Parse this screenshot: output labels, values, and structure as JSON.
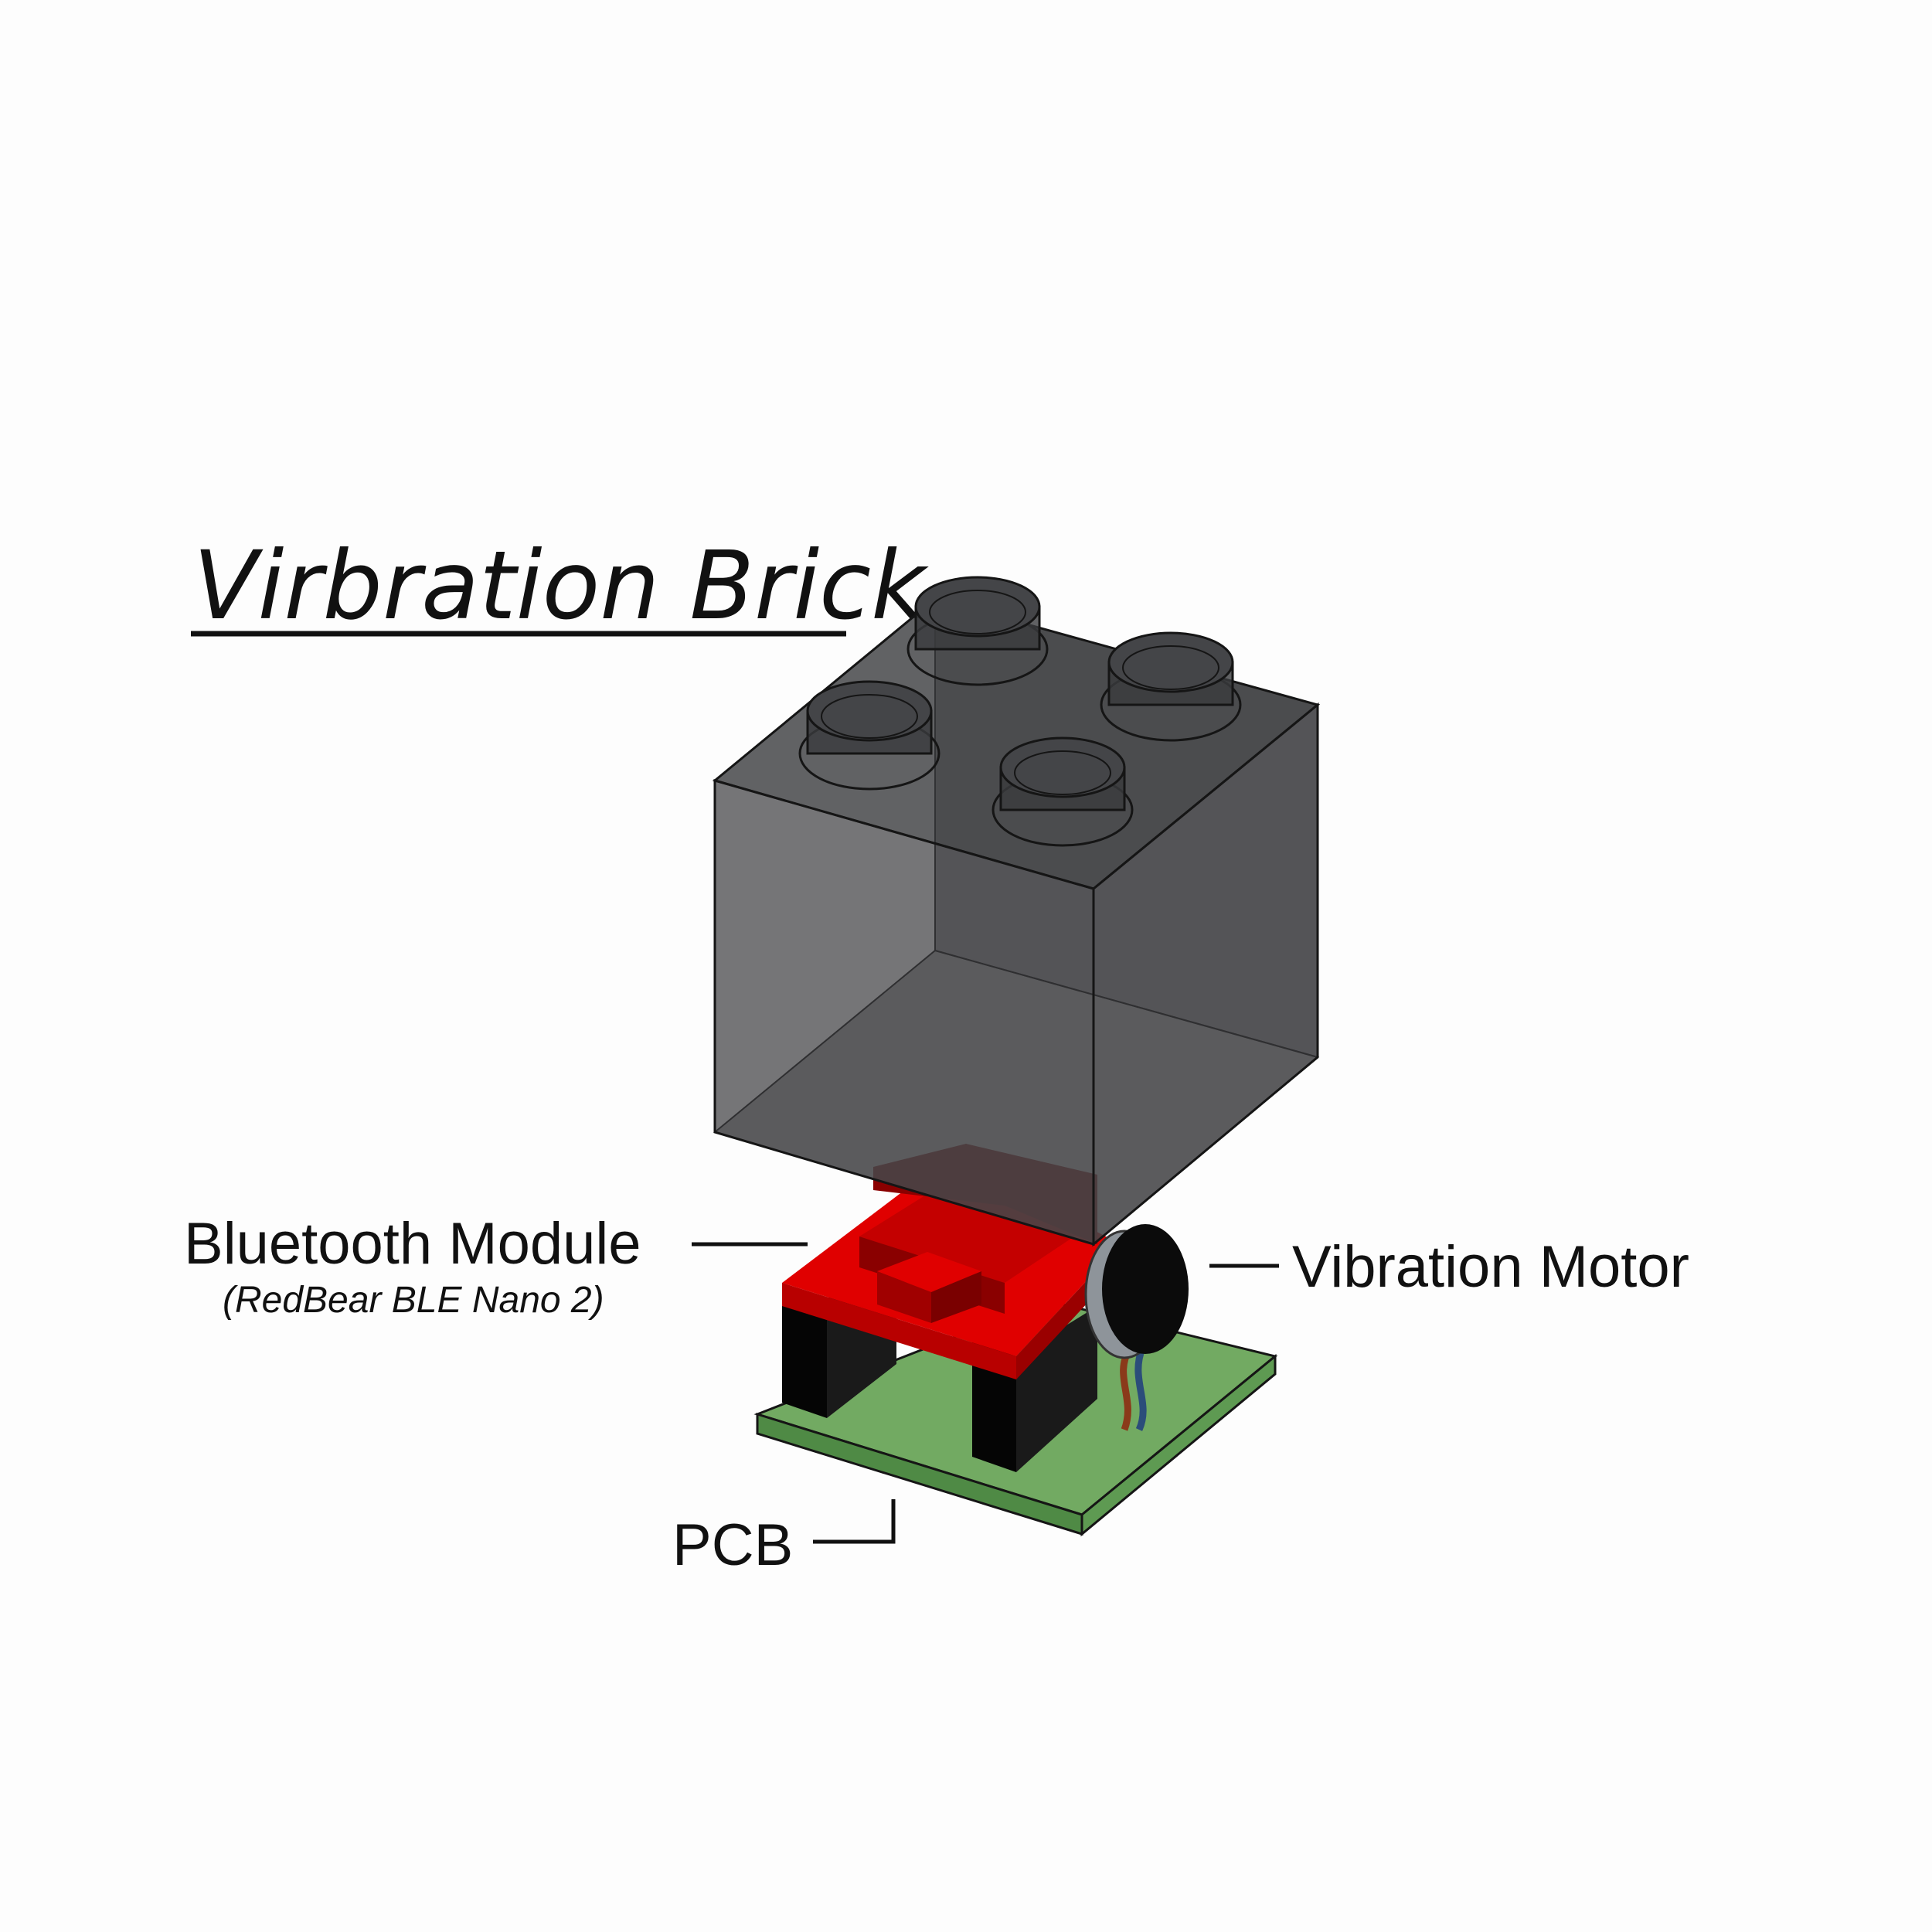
{
  "title": "Virbration Brick",
  "labels": {
    "bluetooth_module": "Bluetooth Module",
    "bluetooth_module_detail": "(RedBear BLE Nano 2)",
    "vibration_motor": "Vibration Motor",
    "pcb": "PCB"
  },
  "colors": {
    "background": "#fdfdfd",
    "brick": "#3a3b3d",
    "module": "#e00000",
    "module_dark": "#8a0000",
    "pcb": "#72aa62",
    "pcb_dark": "#4f8a45",
    "standoff": "#050505",
    "motor": "#0b0b0b"
  }
}
